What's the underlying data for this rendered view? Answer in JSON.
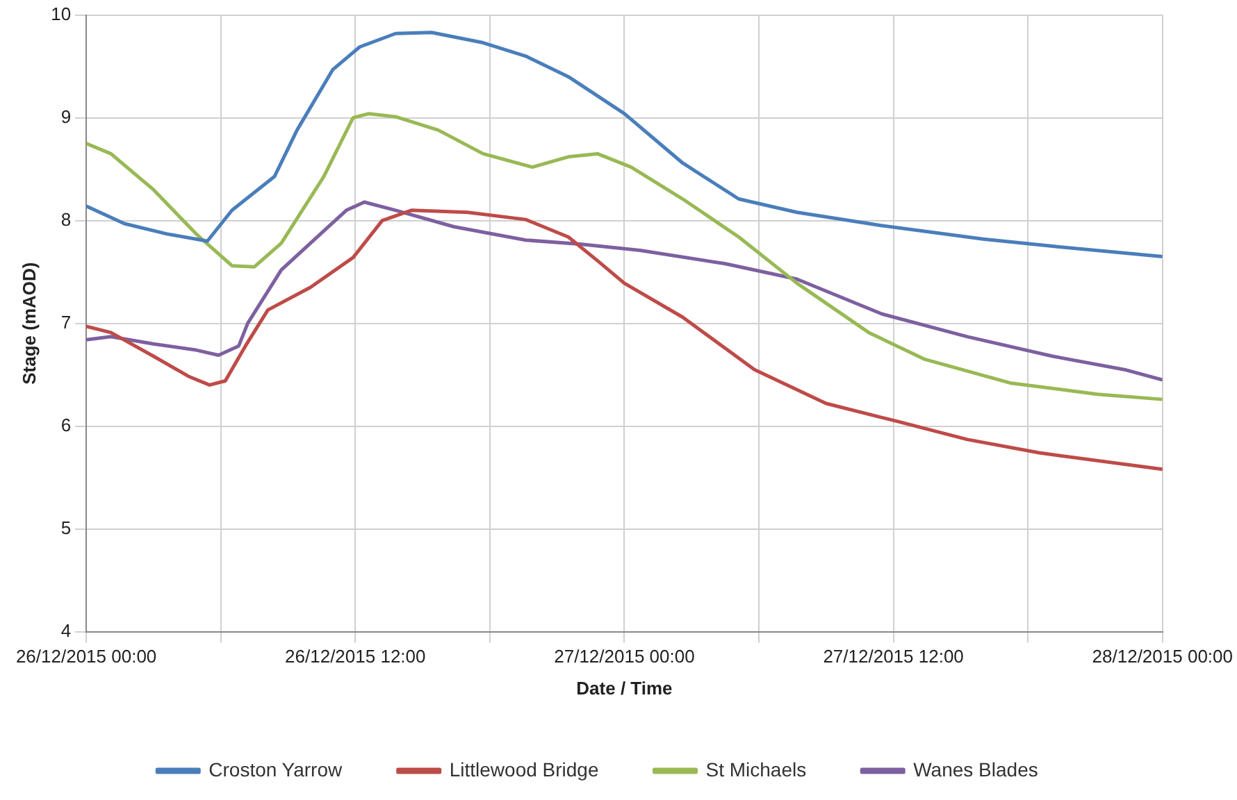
{
  "chart_data": {
    "type": "line",
    "xlabel": "Date / Time",
    "ylabel": "Stage (mAOD)",
    "xlim": [
      "2015-12-26T00:00",
      "2015-12-28T00:00"
    ],
    "xticks": [
      {
        "value": "2015-12-26T00:00",
        "label": "26/12/2015 00:00"
      },
      {
        "value": "2015-12-26T06:00",
        "label": null
      },
      {
        "value": "2015-12-26T12:00",
        "label": "26/12/2015 12:00"
      },
      {
        "value": "2015-12-26T18:00",
        "label": null
      },
      {
        "value": "2015-12-27T00:00",
        "label": "27/12/2015 00:00"
      },
      {
        "value": "2015-12-27T06:00",
        "label": null
      },
      {
        "value": "2015-12-27T12:00",
        "label": "27/12/2015 12:00"
      },
      {
        "value": "2015-12-27T18:00",
        "label": null
      },
      {
        "value": "2015-12-28T00:00",
        "label": "28/12/2015 00:00"
      }
    ],
    "ylim": [
      4,
      10
    ],
    "yticks": [
      4,
      5,
      6,
      7,
      8,
      9,
      10
    ],
    "grid": true,
    "legend": "bottom",
    "marker": "none",
    "line_style": "solid",
    "series": [
      {
        "name": "Croston Yarrow",
        "color": "#4a7ebb",
        "x": [
          "2015-12-26T00:00",
          "2015-12-26T01:42",
          "2015-12-26T03:36",
          "2015-12-26T05:24",
          "2015-12-26T06:30",
          "2015-12-26T08:24",
          "2015-12-26T09:24",
          "2015-12-26T11:00",
          "2015-12-26T12:12",
          "2015-12-26T13:48",
          "2015-12-26T15:24",
          "2015-12-26T17:42",
          "2015-12-26T19:36",
          "2015-12-26T21:30",
          "2015-12-27T00:00",
          "2015-12-27T02:36",
          "2015-12-27T05:06",
          "2015-12-27T07:42",
          "2015-12-27T11:30",
          "2015-12-27T16:00",
          "2015-12-27T19:06",
          "2015-12-28T00:00"
        ],
        "values": [
          8.14,
          7.97,
          7.87,
          7.8,
          8.1,
          8.43,
          8.88,
          9.47,
          9.69,
          9.82,
          9.83,
          9.73,
          9.6,
          9.4,
          9.04,
          8.56,
          8.21,
          8.08,
          7.95,
          7.82,
          7.75,
          7.65
        ]
      },
      {
        "name": "Littlewood Bridge",
        "color": "#be4b48",
        "x": [
          "2015-12-26T00:00",
          "2015-12-26T01:06",
          "2015-12-26T03:00",
          "2015-12-26T04:36",
          "2015-12-26T05:30",
          "2015-12-26T06:12",
          "2015-12-26T07:06",
          "2015-12-26T08:06",
          "2015-12-26T10:00",
          "2015-12-26T11:54",
          "2015-12-26T13:12",
          "2015-12-26T14:30",
          "2015-12-26T17:00",
          "2015-12-26T19:36",
          "2015-12-26T21:30",
          "2015-12-26T22:48",
          "2015-12-27T00:00",
          "2015-12-27T02:36",
          "2015-12-27T05:48",
          "2015-12-27T09:00",
          "2015-12-27T12:06",
          "2015-12-27T15:18",
          "2015-12-27T18:30",
          "2015-12-28T00:00"
        ],
        "values": [
          6.97,
          6.91,
          6.68,
          6.48,
          6.4,
          6.44,
          6.78,
          7.13,
          7.35,
          7.64,
          8.0,
          8.1,
          8.08,
          8.01,
          7.84,
          7.61,
          7.39,
          7.06,
          6.55,
          6.22,
          6.05,
          5.87,
          5.74,
          5.58
        ]
      },
      {
        "name": "St Michaels",
        "color": "#98b954",
        "x": [
          "2015-12-26T00:00",
          "2015-12-26T01:06",
          "2015-12-26T03:00",
          "2015-12-26T04:54",
          "2015-12-26T06:30",
          "2015-12-26T07:30",
          "2015-12-26T08:42",
          "2015-12-26T10:36",
          "2015-12-26T11:54",
          "2015-12-26T12:36",
          "2015-12-26T13:48",
          "2015-12-26T15:42",
          "2015-12-26T17:42",
          "2015-12-26T19:54",
          "2015-12-26T21:30",
          "2015-12-26T22:48",
          "2015-12-27T00:18",
          "2015-12-27T02:36",
          "2015-12-27T05:06",
          "2015-12-27T07:42",
          "2015-12-27T10:54",
          "2015-12-27T13:24",
          "2015-12-27T17:12",
          "2015-12-27T21:06",
          "2015-12-28T00:00"
        ],
        "values": [
          8.75,
          8.65,
          8.3,
          7.87,
          7.56,
          7.55,
          7.78,
          8.43,
          9.0,
          9.04,
          9.01,
          8.88,
          8.65,
          8.52,
          8.62,
          8.65,
          8.52,
          8.21,
          7.84,
          7.39,
          6.91,
          6.65,
          6.42,
          6.31,
          6.26
        ]
      },
      {
        "name": "Wanes Blades",
        "color": "#7d60a0",
        "x": [
          "2015-12-26T00:00",
          "2015-12-26T01:06",
          "2015-12-26T03:00",
          "2015-12-26T04:54",
          "2015-12-26T05:54",
          "2015-12-26T06:48",
          "2015-12-26T07:12",
          "2015-12-26T08:42",
          "2015-12-26T10:36",
          "2015-12-26T11:36",
          "2015-12-26T12:24",
          "2015-12-26T13:48",
          "2015-12-26T16:24",
          "2015-12-26T19:36",
          "2015-12-26T22:06",
          "2015-12-27T00:42",
          "2015-12-27T04:30",
          "2015-12-27T07:42",
          "2015-12-27T11:30",
          "2015-12-27T15:18",
          "2015-12-27T19:06",
          "2015-12-27T22:18",
          "2015-12-28T00:00"
        ],
        "values": [
          6.84,
          6.87,
          6.8,
          6.74,
          6.69,
          6.78,
          7.0,
          7.52,
          7.9,
          8.1,
          8.18,
          8.1,
          7.94,
          7.81,
          7.77,
          7.71,
          7.58,
          7.43,
          7.09,
          6.87,
          6.68,
          6.55,
          6.45
        ]
      }
    ]
  }
}
